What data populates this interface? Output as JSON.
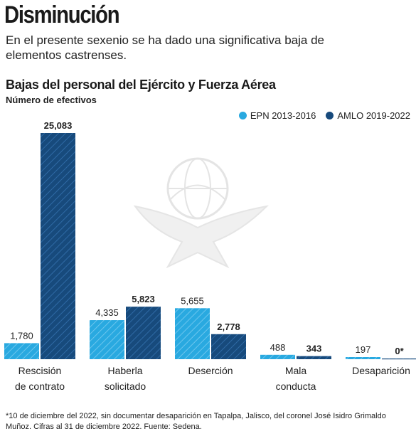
{
  "headline": "Disminución",
  "intro": "En el presente sexenio se ha dado una significativa baja de elementos castrenses.",
  "colors": {
    "epn": "#29a9e0",
    "amlo": "#174a7c",
    "watermark": "#d9d9d9"
  },
  "chart_data": {
    "type": "bar",
    "title": "Bajas del personal del Ejército y Fuerza Aérea",
    "subtitle": "Número de efectivos",
    "categories": [
      [
        "Rescisión",
        "de contrato"
      ],
      [
        "Haberla",
        "solicitado"
      ],
      [
        "Deserción"
      ],
      [
        "Mala",
        "conducta"
      ],
      [
        "Desaparición"
      ]
    ],
    "series": [
      {
        "name": "EPN 2013-2016",
        "values": [
          1780,
          4335,
          5655,
          488,
          197
        ],
        "labels": [
          "1,780",
          "4,335",
          "5,655",
          "488",
          "197"
        ],
        "bold_labels": false
      },
      {
        "name": "AMLO 2019-2022",
        "values": [
          25083,
          5823,
          2778,
          343,
          0
        ],
        "labels": [
          "25,083",
          "5,823",
          "2,778",
          "343",
          "0*"
        ],
        "bold_labels": true
      }
    ],
    "legend_position": "top-right",
    "grid": false,
    "ylim": [
      0,
      25083
    ]
  },
  "footnote": "*10 de diciembre del 2022, sin documentar desaparición en Tapalpa, Jalisco, del coronel José Isidro Grimaldo Muñoz. Cifras al 31 de diciembre 2022. Fuente: Sedena."
}
